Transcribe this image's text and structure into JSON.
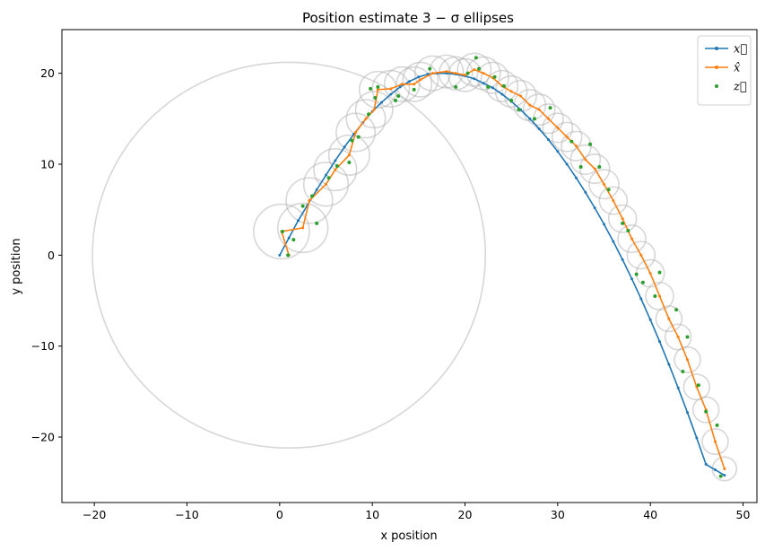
{
  "chart_data": {
    "type": "line",
    "title": "Position estimate 3 − σ ellipses",
    "xlabel": "x position",
    "ylabel": "y position",
    "xlim": [
      -23.5,
      51.5
    ],
    "ylim": [
      -27.2,
      24.8
    ],
    "xticks": [
      -20,
      -10,
      0,
      10,
      20,
      30,
      40,
      50
    ],
    "yticks": [
      -20,
      -10,
      0,
      10,
      20
    ],
    "grid": false,
    "legend_position": "top-right",
    "series": [
      {
        "name": "x⃗",
        "color": "#1f77b4",
        "x": [
          0.0,
          1.0,
          2.0,
          3.0,
          4.0,
          5.0,
          6.0,
          7.0,
          8.0,
          9.0,
          10.0,
          11.0,
          12.0,
          13.0,
          14.0,
          15.0,
          16.0,
          17.0,
          18.0,
          19.0,
          20.0,
          21.0,
          22.0,
          23.0,
          24.0,
          25.0,
          26.0,
          27.0,
          28.0,
          29.0,
          30.0,
          31.0,
          32.0,
          33.0,
          34.0,
          35.0,
          36.0,
          37.0,
          38.0,
          39.0,
          40.0,
          41.0,
          42.0,
          43.0,
          44.0,
          45.0,
          46.0,
          47.0,
          48.0
        ],
        "y": [
          0.0,
          1.9,
          3.8,
          5.5,
          7.2,
          8.8,
          10.4,
          11.9,
          13.3,
          14.6,
          15.8,
          16.8,
          17.7,
          18.5,
          19.1,
          19.6,
          19.9,
          20.0,
          20.0,
          19.9,
          19.7,
          19.4,
          18.9,
          18.4,
          17.7,
          16.9,
          16.0,
          15.0,
          13.9,
          12.7,
          11.4,
          10.0,
          8.5,
          6.9,
          5.2,
          3.4,
          1.5,
          -0.5,
          -2.6,
          -4.8,
          -7.1,
          -9.5,
          -12.0,
          -14.6,
          -17.3,
          -20.1,
          -23.0,
          -23.6,
          -24.2
        ]
      },
      {
        "name": "x̂",
        "color": "#ff7f0e",
        "x": [
          1.0,
          0.2,
          2.5,
          3.2,
          5.0,
          6.0,
          7.5,
          8.2,
          9.3,
          10.2,
          10.6,
          12.0,
          13.2,
          14.5,
          15.2,
          16.5,
          18.0,
          19.0,
          20.0,
          21.0,
          22.0,
          23.0,
          24.0,
          25.0,
          26.0,
          27.0,
          28.0,
          29.0,
          30.0,
          31.0,
          32.0,
          33.0,
          34.0,
          35.0,
          36.0,
          37.0,
          38.0,
          39.0,
          40.0,
          41.0,
          42.0,
          43.0,
          44.0,
          45.0,
          46.0,
          47.0,
          48.0
        ],
        "y": [
          0.0,
          2.6,
          3.0,
          6.0,
          7.8,
          9.4,
          11.0,
          13.5,
          15.0,
          16.0,
          18.2,
          18.3,
          18.8,
          18.8,
          19.3,
          20.0,
          20.2,
          20.0,
          19.8,
          20.4,
          20.0,
          19.5,
          18.6,
          18.0,
          17.5,
          16.5,
          16.0,
          15.0,
          14.0,
          13.0,
          12.0,
          10.5,
          9.5,
          7.8,
          6.0,
          4.0,
          1.8,
          0.0,
          -2.0,
          -4.5,
          -7.0,
          -9.0,
          -11.5,
          -14.5,
          -17.0,
          -20.5,
          -23.5
        ]
      },
      {
        "name": "z⃗",
        "color": "#2ca02c",
        "type": "scatter",
        "x": [
          0.3,
          0.9,
          1.5,
          2.5,
          3.5,
          4.0,
          5.3,
          6.2,
          7.5,
          7.8,
          8.5,
          9.6,
          9.8,
          10.3,
          10.6,
          12.5,
          12.8,
          14.5,
          16.2,
          19.0,
          20.3,
          21.2,
          21.5,
          22.5,
          23.2,
          24.2,
          25.0,
          25.8,
          27.5,
          29.2,
          31.5,
          32.5,
          33.5,
          34.5,
          35.5,
          37.0,
          37.6,
          38.5,
          39.2,
          40.5,
          41.0,
          42.8,
          43.5,
          44.0,
          45.2,
          46.0,
          47.2,
          47.6
        ],
        "y": [
          2.6,
          0.0,
          1.7,
          5.4,
          6.5,
          3.5,
          8.5,
          9.8,
          10.2,
          12.6,
          13.0,
          15.5,
          18.3,
          17.3,
          18.5,
          17.0,
          17.5,
          18.2,
          20.5,
          18.5,
          20.0,
          21.7,
          20.5,
          18.5,
          19.6,
          18.6,
          17.0,
          16.0,
          15.0,
          16.2,
          12.5,
          9.7,
          12.2,
          9.7,
          7.2,
          3.5,
          2.7,
          -2.1,
          -3.0,
          -4.5,
          -1.9,
          -6.0,
          -12.8,
          -9.0,
          -14.3,
          -17.2,
          -18.7,
          -24.3
        ]
      }
    ],
    "ellipses": {
      "color": "#b0b0b0",
      "cx": [
        1.0,
        0.2,
        2.5,
        3.2,
        5.0,
        6.0,
        7.5,
        8.2,
        9.3,
        10.2,
        10.6,
        12.0,
        13.2,
        14.5,
        15.2,
        16.5,
        18.0,
        19.0,
        20.0,
        21.0,
        22.0,
        23.0,
        24.0,
        25.0,
        26.0,
        27.0,
        28.0,
        29.0,
        30.0,
        31.0,
        32.0,
        33.0,
        34.0,
        35.0,
        36.0,
        37.0,
        38.0,
        39.0,
        40.0,
        41.0,
        42.0,
        43.0,
        44.0,
        45.0,
        46.0,
        47.0,
        48.0
      ],
      "cy": [
        0.0,
        2.6,
        3.0,
        6.0,
        7.8,
        9.4,
        11.0,
        13.5,
        15.0,
        16.0,
        18.2,
        18.3,
        18.8,
        18.8,
        19.3,
        20.0,
        20.2,
        20.0,
        19.8,
        20.4,
        20.0,
        19.5,
        18.6,
        18.0,
        17.5,
        16.5,
        16.0,
        15.0,
        14.0,
        13.0,
        12.0,
        10.5,
        9.5,
        7.8,
        6.0,
        4.0,
        1.8,
        0.0,
        -2.0,
        -4.5,
        -7.0,
        -9.0,
        -11.5,
        -14.5,
        -17.0,
        -20.5,
        -23.5
      ],
      "r": [
        21.2,
        3.0,
        2.7,
        2.5,
        2.4,
        2.3,
        2.2,
        2.1,
        2.1,
        2.0,
        2.0,
        2.0,
        1.9,
        1.9,
        1.9,
        1.9,
        1.8,
        1.8,
        1.8,
        1.8,
        1.8,
        1.7,
        1.7,
        1.7,
        1.7,
        1.7,
        1.7,
        1.6,
        1.6,
        1.6,
        1.6,
        1.6,
        1.6,
        1.6,
        1.5,
        1.5,
        1.5,
        1.5,
        1.5,
        1.5,
        1.4,
        1.4,
        1.4,
        1.4,
        1.4,
        1.4,
        1.3
      ]
    }
  }
}
